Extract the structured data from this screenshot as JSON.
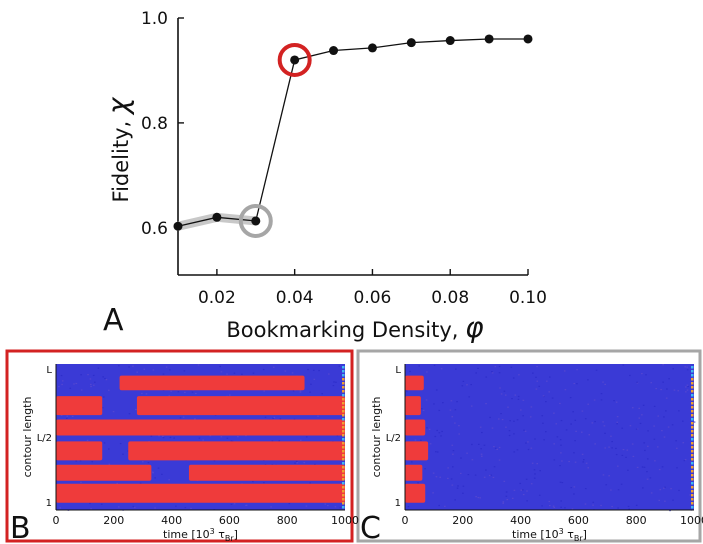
{
  "chart_data": [
    {
      "panel": "A",
      "type": "line",
      "xlabel": "Bookmarking Density,",
      "xlabel_symbol": "φ",
      "ylabel": "Fidelity,",
      "ylabel_symbol": "χ",
      "xticks": [
        "0.02",
        "0.04",
        "0.06",
        "0.08",
        "0.10"
      ],
      "yticks": [
        "0.6",
        "0.8",
        "1.0"
      ],
      "xlim": [
        0.01,
        0.1
      ],
      "ylim": [
        0.51,
        1.0
      ],
      "x": [
        0.01,
        0.02,
        0.03,
        0.04,
        0.05,
        0.06,
        0.07,
        0.08,
        0.09,
        0.1
      ],
      "y": [
        0.603,
        0.62,
        0.613,
        0.92,
        0.938,
        0.943,
        0.953,
        0.957,
        0.96,
        0.96
      ],
      "highlighted_points": [
        {
          "x": 0.03,
          "y": 0.613,
          "color": "#a6a6a6"
        },
        {
          "x": 0.04,
          "y": 0.92,
          "color": "#d32222"
        }
      ],
      "shaded_segment": {
        "x": [
          0.01,
          0.02,
          0.03
        ],
        "color": "#c8c8c8"
      },
      "grid": false
    },
    {
      "panel": "B",
      "type": "heatmap",
      "xlabel": "time [10",
      "xlabel_sup": "3",
      "xlabel_tau": " τ",
      "xlabel_sub": "Br",
      "xlabel_end": "]",
      "ylabel": "contour length",
      "xticks": [
        "0",
        "200",
        "400",
        "600",
        "800",
        "1000"
      ],
      "yticks": [
        "1",
        "L/2",
        "L"
      ],
      "xlim": [
        0,
        1000
      ],
      "colors": {
        "background": "#3a3ad6",
        "domain": "#ef3b3b"
      },
      "frame_color": "#d32222",
      "bands": [
        {
          "y": [
            0.05,
            0.18
          ],
          "t": [
            [
              0,
              1000
            ]
          ]
        },
        {
          "y": [
            0.2,
            0.31
          ],
          "t": [
            [
              0,
              330
            ],
            [
              460,
              1000
            ]
          ]
        },
        {
          "y": [
            0.34,
            0.47
          ],
          "t": [
            [
              0,
              160
            ],
            [
              250,
              1000
            ]
          ]
        },
        {
          "y": [
            0.51,
            0.62
          ],
          "t": [
            [
              0,
              1000
            ]
          ]
        },
        {
          "y": [
            0.65,
            0.78
          ],
          "t": [
            [
              0,
              160
            ],
            [
              280,
              1000
            ]
          ]
        },
        {
          "y": [
            0.82,
            0.92
          ],
          "t": [
            [
              220,
              860
            ]
          ]
        }
      ],
      "marker_column": {
        "colors": [
          "#f0a030",
          "#40b8f0"
        ]
      }
    },
    {
      "panel": "C",
      "type": "heatmap",
      "xlabel": "time [10",
      "xlabel_sup": "3",
      "xlabel_tau": " τ",
      "xlabel_sub": "Br",
      "xlabel_end": "]",
      "ylabel": "contour length",
      "xticks": [
        "0",
        "200",
        "400",
        "600",
        "800",
        "1000"
      ],
      "yticks": [
        "1",
        "L/2",
        "L"
      ],
      "xlim": [
        0,
        1000
      ],
      "colors": {
        "background": "#3a3ad6",
        "domain": "#ef3b3b"
      },
      "frame_color": "#a6a6a6",
      "bands": [
        {
          "y": [
            0.05,
            0.18
          ],
          "t": [
            [
              0,
              70
            ]
          ]
        },
        {
          "y": [
            0.2,
            0.31
          ],
          "t": [
            [
              0,
              60
            ]
          ]
        },
        {
          "y": [
            0.34,
            0.47
          ],
          "t": [
            [
              0,
              80
            ]
          ]
        },
        {
          "y": [
            0.51,
            0.62
          ],
          "t": [
            [
              0,
              70
            ]
          ]
        },
        {
          "y": [
            0.65,
            0.78
          ],
          "t": [
            [
              0,
              55
            ]
          ]
        },
        {
          "y": [
            0.82,
            0.92
          ],
          "t": [
            [
              0,
              65
            ]
          ]
        }
      ],
      "marker_column": {
        "colors": [
          "#f0a030",
          "#40b8f0"
        ]
      }
    }
  ]
}
